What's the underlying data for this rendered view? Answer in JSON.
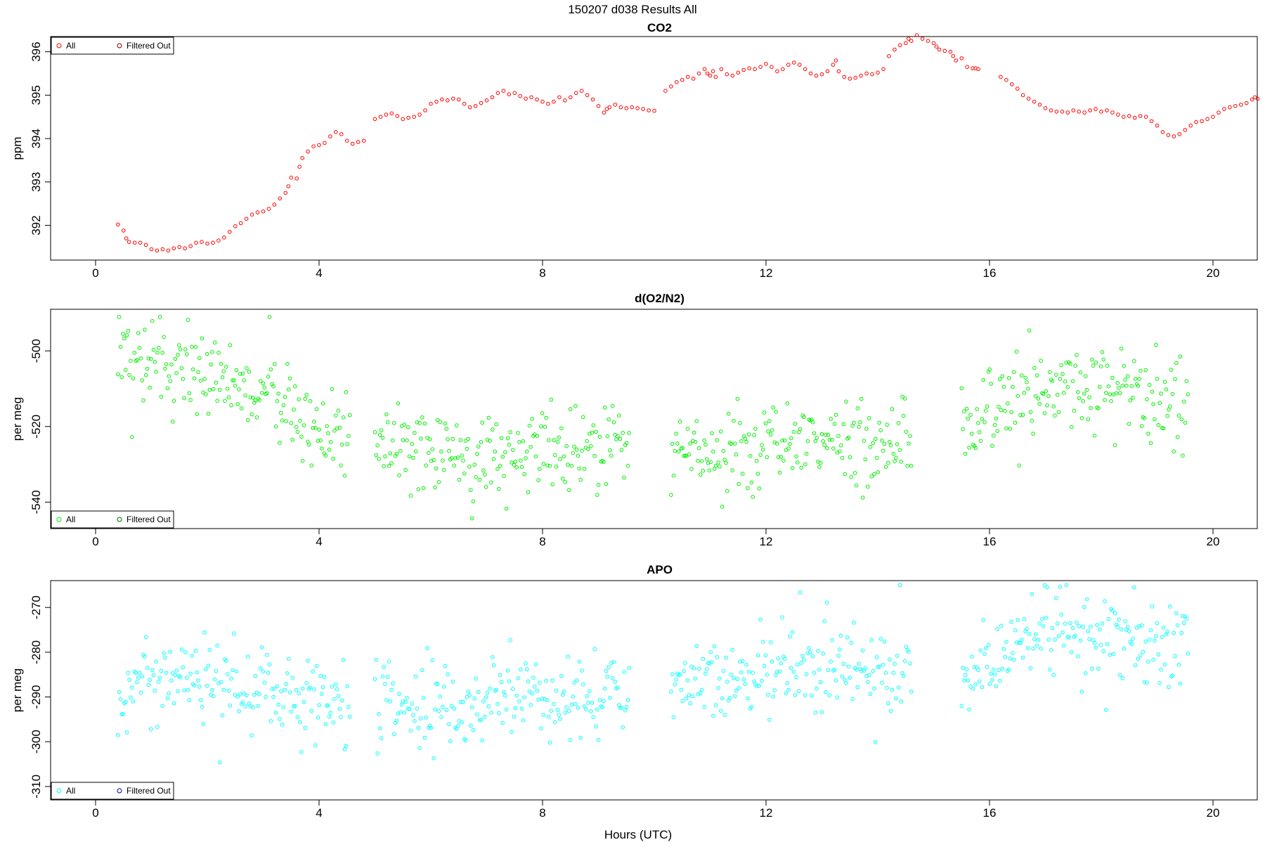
{
  "figure": {
    "title": "150207   d038   Results All",
    "xlabel": "Hours (UTC)"
  },
  "colors": {
    "co2": "#ff0000",
    "o2n2": "#00ee00",
    "apo": "#00ffff",
    "filtered_co2": "#8b0000",
    "filtered_o2n2": "#006400",
    "filtered_apo": "#00008b"
  },
  "chart_data": [
    {
      "type": "scatter",
      "title": "CO2",
      "ylabel": "ppm",
      "xlabel": "",
      "xlim": [
        -1,
        20.8
      ],
      "ylim": [
        391.2,
        396.35
      ],
      "xticks": [
        0,
        4,
        8,
        12,
        16,
        20
      ],
      "yticks": [
        392,
        393,
        394,
        395,
        396
      ],
      "legend": {
        "position": "top-left",
        "entries": [
          "All",
          "Filtered Out"
        ]
      },
      "series": [
        {
          "name": "All",
          "color": "co2",
          "points": [
            [
              0.4,
              392.02
            ],
            [
              0.5,
              391.88
            ],
            [
              0.55,
              391.7
            ],
            [
              0.6,
              391.62
            ],
            [
              0.7,
              391.6
            ],
            [
              0.8,
              391.6
            ],
            [
              0.9,
              391.55
            ],
            [
              1.0,
              391.45
            ],
            [
              1.1,
              391.42
            ],
            [
              1.2,
              391.45
            ],
            [
              1.3,
              391.42
            ],
            [
              1.4,
              391.47
            ],
            [
              1.5,
              391.5
            ],
            [
              1.6,
              391.47
            ],
            [
              1.7,
              391.52
            ],
            [
              1.8,
              391.6
            ],
            [
              1.9,
              391.62
            ],
            [
              2.0,
              391.58
            ],
            [
              2.1,
              391.6
            ],
            [
              2.2,
              391.65
            ],
            [
              2.3,
              391.72
            ],
            [
              2.4,
              391.85
            ],
            [
              2.5,
              391.98
            ],
            [
              2.6,
              392.05
            ],
            [
              2.7,
              392.15
            ],
            [
              2.8,
              392.25
            ],
            [
              2.9,
              392.3
            ],
            [
              3.0,
              392.32
            ],
            [
              3.1,
              392.38
            ],
            [
              3.2,
              392.48
            ],
            [
              3.3,
              392.62
            ],
            [
              3.4,
              392.75
            ],
            [
              3.45,
              392.9
            ],
            [
              3.5,
              393.1
            ],
            [
              3.6,
              393.08
            ],
            [
              3.65,
              393.35
            ],
            [
              3.7,
              393.55
            ],
            [
              3.8,
              393.7
            ],
            [
              3.9,
              393.82
            ],
            [
              4.0,
              393.85
            ],
            [
              4.1,
              393.9
            ],
            [
              4.2,
              394.05
            ],
            [
              4.3,
              394.15
            ],
            [
              4.4,
              394.1
            ],
            [
              4.5,
              393.95
            ],
            [
              4.6,
              393.88
            ],
            [
              4.7,
              393.92
            ],
            [
              4.8,
              393.95
            ],
            [
              5.0,
              394.45
            ],
            [
              5.1,
              394.5
            ],
            [
              5.2,
              394.55
            ],
            [
              5.3,
              394.58
            ],
            [
              5.4,
              394.52
            ],
            [
              5.5,
              394.45
            ],
            [
              5.6,
              394.48
            ],
            [
              5.7,
              394.5
            ],
            [
              5.8,
              394.55
            ],
            [
              5.9,
              394.65
            ],
            [
              6.0,
              394.8
            ],
            [
              6.1,
              394.85
            ],
            [
              6.2,
              394.9
            ],
            [
              6.3,
              394.88
            ],
            [
              6.4,
              394.92
            ],
            [
              6.5,
              394.9
            ],
            [
              6.6,
              394.8
            ],
            [
              6.7,
              394.72
            ],
            [
              6.8,
              394.75
            ],
            [
              6.9,
              394.82
            ],
            [
              7.0,
              394.88
            ],
            [
              7.1,
              394.95
            ],
            [
              7.2,
              395.05
            ],
            [
              7.3,
              395.1
            ],
            [
              7.4,
              395.02
            ],
            [
              7.5,
              395.05
            ],
            [
              7.6,
              394.98
            ],
            [
              7.7,
              394.92
            ],
            [
              7.8,
              394.95
            ],
            [
              7.9,
              394.9
            ],
            [
              8.0,
              394.85
            ],
            [
              8.1,
              394.8
            ],
            [
              8.2,
              394.85
            ],
            [
              8.3,
              394.95
            ],
            [
              8.4,
              394.88
            ],
            [
              8.5,
              394.95
            ],
            [
              8.6,
              395.05
            ],
            [
              8.7,
              395.1
            ],
            [
              8.8,
              395.0
            ],
            [
              8.9,
              394.9
            ],
            [
              9.0,
              394.75
            ],
            [
              9.1,
              394.6
            ],
            [
              9.15,
              394.68
            ],
            [
              9.2,
              394.72
            ],
            [
              9.3,
              394.78
            ],
            [
              9.4,
              394.72
            ],
            [
              9.5,
              394.7
            ],
            [
              9.6,
              394.72
            ],
            [
              9.7,
              394.7
            ],
            [
              9.8,
              394.68
            ],
            [
              9.9,
              394.65
            ],
            [
              10.0,
              394.64
            ],
            [
              10.2,
              395.1
            ],
            [
              10.3,
              395.2
            ],
            [
              10.4,
              395.3
            ],
            [
              10.5,
              395.35
            ],
            [
              10.6,
              395.42
            ],
            [
              10.7,
              395.38
            ],
            [
              10.8,
              395.5
            ],
            [
              10.9,
              395.6
            ],
            [
              10.95,
              395.5
            ],
            [
              11.0,
              395.45
            ],
            [
              11.05,
              395.55
            ],
            [
              11.1,
              395.42
            ],
            [
              11.2,
              395.6
            ],
            [
              11.3,
              395.48
            ],
            [
              11.4,
              395.45
            ],
            [
              11.5,
              395.52
            ],
            [
              11.6,
              395.58
            ],
            [
              11.7,
              395.62
            ],
            [
              11.8,
              395.6
            ],
            [
              11.9,
              395.65
            ],
            [
              12.0,
              395.72
            ],
            [
              12.1,
              395.65
            ],
            [
              12.2,
              395.55
            ],
            [
              12.3,
              395.6
            ],
            [
              12.4,
              395.7
            ],
            [
              12.5,
              395.75
            ],
            [
              12.6,
              395.7
            ],
            [
              12.7,
              395.6
            ],
            [
              12.8,
              395.5
            ],
            [
              12.9,
              395.45
            ],
            [
              13.0,
              395.48
            ],
            [
              13.1,
              395.55
            ],
            [
              13.2,
              395.7
            ],
            [
              13.25,
              395.8
            ],
            [
              13.3,
              395.55
            ],
            [
              13.4,
              395.42
            ],
            [
              13.5,
              395.38
            ],
            [
              13.6,
              395.4
            ],
            [
              13.7,
              395.45
            ],
            [
              13.8,
              395.5
            ],
            [
              13.9,
              395.48
            ],
            [
              14.0,
              395.52
            ],
            [
              14.1,
              395.6
            ],
            [
              14.2,
              395.9
            ],
            [
              14.3,
              396.05
            ],
            [
              14.4,
              396.15
            ],
            [
              14.5,
              396.2
            ],
            [
              14.55,
              396.3
            ],
            [
              14.6,
              396.25
            ],
            [
              14.7,
              396.38
            ],
            [
              14.8,
              396.3
            ],
            [
              14.9,
              396.25
            ],
            [
              15.0,
              396.2
            ],
            [
              15.05,
              396.12
            ],
            [
              15.1,
              396.05
            ],
            [
              15.2,
              396.02
            ],
            [
              15.3,
              396.0
            ],
            [
              15.35,
              395.9
            ],
            [
              15.4,
              395.8
            ],
            [
              15.5,
              395.85
            ],
            [
              15.6,
              395.65
            ],
            [
              15.7,
              395.62
            ],
            [
              15.75,
              395.62
            ],
            [
              15.8,
              395.6
            ],
            [
              16.2,
              395.42
            ],
            [
              16.3,
              395.35
            ],
            [
              16.4,
              395.25
            ],
            [
              16.5,
              395.15
            ],
            [
              16.6,
              395.0
            ],
            [
              16.7,
              394.92
            ],
            [
              16.8,
              394.85
            ],
            [
              16.9,
              394.78
            ],
            [
              17.0,
              394.7
            ],
            [
              17.1,
              394.65
            ],
            [
              17.2,
              394.62
            ],
            [
              17.3,
              394.62
            ],
            [
              17.4,
              394.6
            ],
            [
              17.5,
              394.65
            ],
            [
              17.6,
              394.62
            ],
            [
              17.7,
              394.6
            ],
            [
              17.8,
              394.65
            ],
            [
              17.9,
              394.68
            ],
            [
              18.0,
              394.62
            ],
            [
              18.1,
              394.65
            ],
            [
              18.2,
              394.6
            ],
            [
              18.3,
              394.55
            ],
            [
              18.4,
              394.5
            ],
            [
              18.5,
              394.52
            ],
            [
              18.6,
              394.48
            ],
            [
              18.7,
              394.52
            ],
            [
              18.8,
              394.5
            ],
            [
              18.9,
              394.4
            ],
            [
              19.0,
              394.3
            ],
            [
              19.1,
              394.15
            ],
            [
              19.2,
              394.08
            ],
            [
              19.3,
              394.05
            ],
            [
              19.4,
              394.1
            ],
            [
              19.5,
              394.2
            ],
            [
              19.6,
              394.3
            ],
            [
              19.7,
              394.38
            ],
            [
              19.8,
              394.4
            ],
            [
              19.9,
              394.45
            ],
            [
              20.0,
              394.5
            ],
            [
              20.1,
              394.6
            ],
            [
              20.2,
              394.68
            ],
            [
              20.3,
              394.72
            ],
            [
              20.4,
              394.75
            ],
            [
              20.5,
              394.78
            ],
            [
              20.6,
              394.82
            ],
            [
              20.7,
              394.9
            ],
            [
              20.75,
              394.95
            ],
            [
              20.8,
              394.92
            ]
          ]
        },
        {
          "name": "Filtered Out",
          "color": "filtered_co2",
          "points": []
        }
      ]
    },
    {
      "type": "scatter",
      "title": "d(O2/N2)",
      "ylabel": "per meg",
      "xlabel": "",
      "xlim": [
        -1,
        20.8
      ],
      "ylim": [
        -547,
        -489
      ],
      "xticks": [
        0,
        4,
        8,
        12,
        16,
        20
      ],
      "yticks": [
        -500,
        -520,
        -540
      ],
      "legend": {
        "position": "bottom-left",
        "entries": [
          "All",
          "Filtered Out"
        ]
      },
      "series": [
        {
          "name": "All",
          "color": "o2n2",
          "points": []
        },
        {
          "name": "Filtered Out",
          "color": "filtered_o2n2",
          "points": []
        }
      ]
    },
    {
      "type": "scatter",
      "title": "APO",
      "ylabel": "per meg",
      "xlabel": "Hours (UTC)",
      "xlim": [
        -1,
        20.8
      ],
      "ylim": [
        -313,
        -264
      ],
      "xticks": [
        0,
        4,
        8,
        12,
        16,
        20
      ],
      "yticks": [
        -270,
        -280,
        -290,
        -300,
        -310
      ],
      "legend": {
        "position": "bottom-left",
        "entries": [
          "All",
          "Filtered Out"
        ]
      },
      "series": [
        {
          "name": "All",
          "color": "apo",
          "points": []
        },
        {
          "name": "Filtered Out",
          "color": "filtered_apo",
          "points": []
        }
      ]
    }
  ]
}
